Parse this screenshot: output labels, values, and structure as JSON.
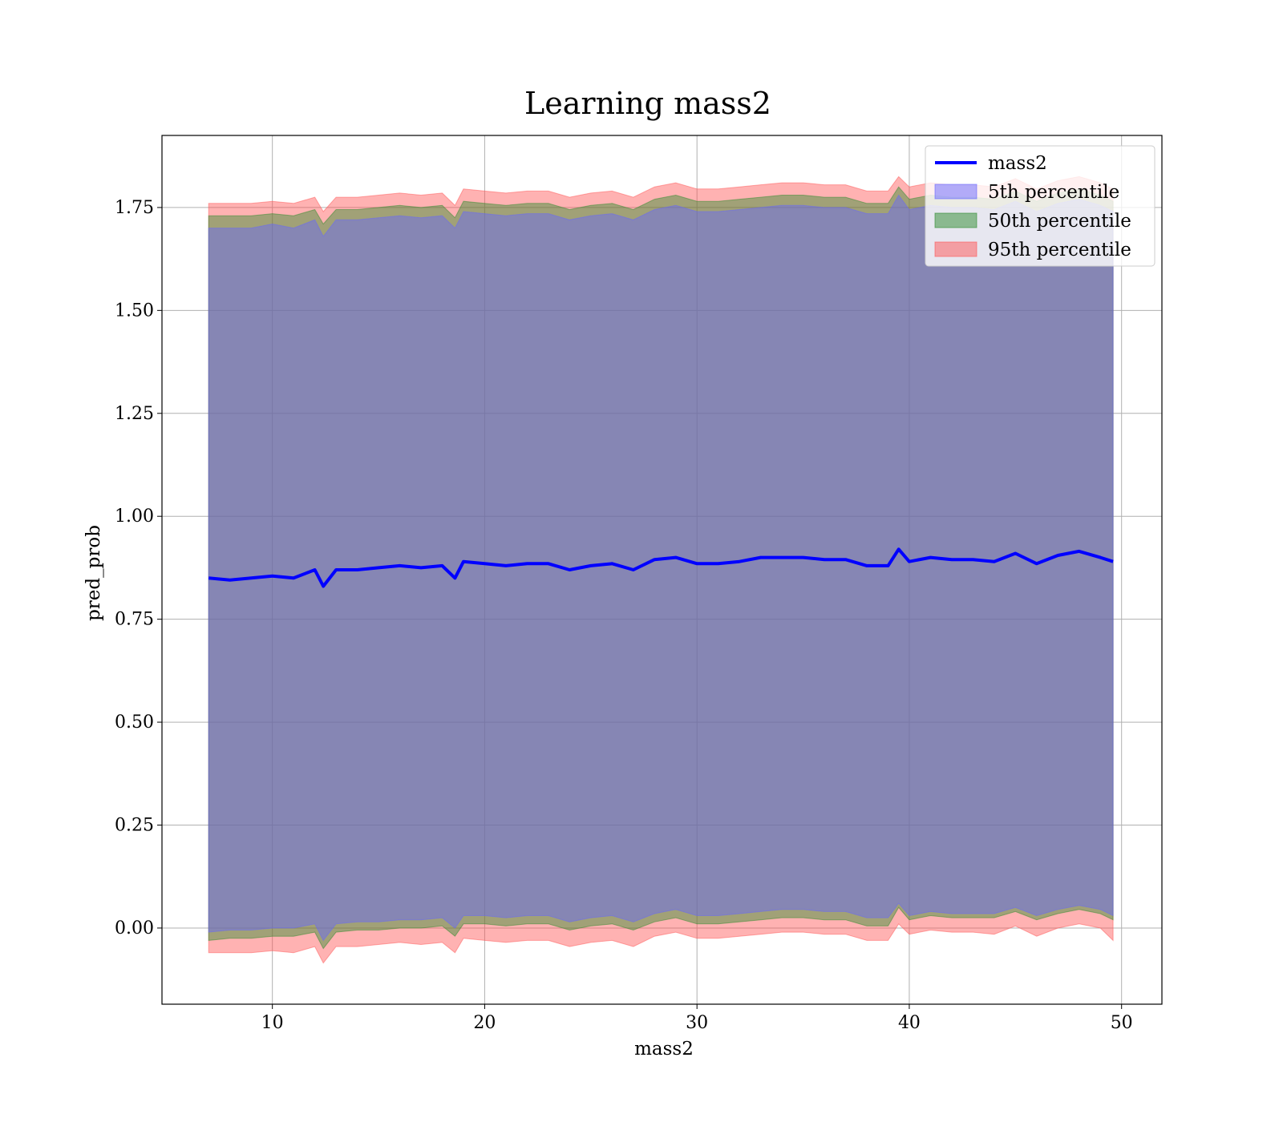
{
  "chart_data": {
    "type": "area",
    "title": "Learning mass2",
    "xlabel": "mass2",
    "ylabel": "pred_prob",
    "xlim": [
      4.8,
      51.9
    ],
    "ylim": [
      -0.185,
      1.925
    ],
    "x_ticks": [
      "10",
      "20",
      "30",
      "40",
      "50"
    ],
    "x_tick_values": [
      10,
      20,
      30,
      40,
      50
    ],
    "y_ticks": [
      "0.00",
      "0.25",
      "0.50",
      "0.75",
      "1.00",
      "1.25",
      "1.50",
      "1.75"
    ],
    "y_tick_values": [
      0,
      0.25,
      0.5,
      0.75,
      1.0,
      1.25,
      1.5,
      1.75
    ],
    "grid": true,
    "legend_position": "top-right",
    "x": [
      7.0,
      8.0,
      9.0,
      10.0,
      11.0,
      12.0,
      12.4,
      13.0,
      14.0,
      15.0,
      16.0,
      17.0,
      18.0,
      18.6,
      19.0,
      20.0,
      21.0,
      22.0,
      23.0,
      24.0,
      25.0,
      26.0,
      27.0,
      28.0,
      29.0,
      30.0,
      31.0,
      32.0,
      33.0,
      34.0,
      35.0,
      36.0,
      37.0,
      38.0,
      39.0,
      39.5,
      40.0,
      41.0,
      42.0,
      43.0,
      44.0,
      45.0,
      46.0,
      47.0,
      48.0,
      49.0,
      49.6
    ],
    "series": [
      {
        "name": "mass2",
        "kind": "line",
        "color": "#0000ff",
        "values": [
          0.85,
          0.845,
          0.85,
          0.855,
          0.85,
          0.87,
          0.83,
          0.87,
          0.87,
          0.875,
          0.88,
          0.875,
          0.88,
          0.85,
          0.89,
          0.885,
          0.88,
          0.885,
          0.885,
          0.87,
          0.88,
          0.885,
          0.87,
          0.895,
          0.9,
          0.885,
          0.885,
          0.89,
          0.9,
          0.9,
          0.9,
          0.895,
          0.895,
          0.88,
          0.88,
          0.92,
          0.89,
          0.9,
          0.895,
          0.895,
          0.89,
          0.91,
          0.885,
          0.905,
          0.915,
          0.9,
          0.89
        ]
      },
      {
        "name": "5th percentile",
        "kind": "band",
        "color": "#6666ff",
        "lower": [
          -0.01,
          -0.005,
          -0.005,
          0.0,
          0.0,
          0.01,
          -0.03,
          0.01,
          0.015,
          0.015,
          0.02,
          0.02,
          0.025,
          0.0,
          0.03,
          0.03,
          0.025,
          0.03,
          0.03,
          0.015,
          0.025,
          0.03,
          0.015,
          0.035,
          0.045,
          0.03,
          0.03,
          0.035,
          0.04,
          0.045,
          0.045,
          0.04,
          0.04,
          0.025,
          0.025,
          0.06,
          0.03,
          0.04,
          0.035,
          0.035,
          0.035,
          0.05,
          0.03,
          0.045,
          0.055,
          0.045,
          0.03
        ],
        "upper": [
          1.7,
          1.7,
          1.7,
          1.71,
          1.7,
          1.72,
          1.68,
          1.72,
          1.72,
          1.725,
          1.73,
          1.725,
          1.73,
          1.7,
          1.74,
          1.735,
          1.73,
          1.735,
          1.735,
          1.72,
          1.73,
          1.735,
          1.72,
          1.745,
          1.755,
          1.74,
          1.74,
          1.745,
          1.75,
          1.755,
          1.755,
          1.75,
          1.75,
          1.735,
          1.735,
          1.78,
          1.745,
          1.755,
          1.75,
          1.75,
          1.745,
          1.765,
          1.74,
          1.76,
          1.77,
          1.755,
          1.74
        ]
      },
      {
        "name": "50th percentile",
        "kind": "band",
        "color": "#2e8b2e",
        "lower": [
          -0.03,
          -0.025,
          -0.025,
          -0.02,
          -0.02,
          -0.01,
          -0.05,
          -0.01,
          -0.005,
          -0.005,
          0.0,
          0.0,
          0.005,
          -0.02,
          0.01,
          0.01,
          0.005,
          0.01,
          0.01,
          -0.005,
          0.005,
          0.01,
          -0.005,
          0.015,
          0.025,
          0.01,
          0.01,
          0.015,
          0.02,
          0.025,
          0.025,
          0.02,
          0.02,
          0.005,
          0.005,
          0.05,
          0.02,
          0.03,
          0.025,
          0.025,
          0.025,
          0.04,
          0.02,
          0.035,
          0.045,
          0.035,
          0.02
        ],
        "upper": [
          1.73,
          1.73,
          1.73,
          1.735,
          1.73,
          1.745,
          1.71,
          1.745,
          1.745,
          1.75,
          1.755,
          1.75,
          1.755,
          1.725,
          1.765,
          1.76,
          1.755,
          1.76,
          1.76,
          1.745,
          1.755,
          1.76,
          1.745,
          1.77,
          1.78,
          1.765,
          1.765,
          1.77,
          1.775,
          1.78,
          1.78,
          1.775,
          1.775,
          1.76,
          1.76,
          1.8,
          1.77,
          1.78,
          1.775,
          1.775,
          1.77,
          1.79,
          1.765,
          1.785,
          1.795,
          1.78,
          1.765
        ]
      },
      {
        "name": "95th percentile",
        "kind": "band",
        "color": "#ff5555",
        "lower": [
          -0.06,
          -0.06,
          -0.06,
          -0.055,
          -0.06,
          -0.045,
          -0.085,
          -0.045,
          -0.045,
          -0.04,
          -0.035,
          -0.04,
          -0.035,
          -0.06,
          -0.025,
          -0.03,
          -0.035,
          -0.03,
          -0.03,
          -0.045,
          -0.035,
          -0.03,
          -0.045,
          -0.02,
          -0.01,
          -0.025,
          -0.025,
          -0.02,
          -0.015,
          -0.01,
          -0.01,
          -0.015,
          -0.015,
          -0.03,
          -0.03,
          0.01,
          -0.015,
          -0.005,
          -0.01,
          -0.01,
          -0.015,
          0.005,
          -0.02,
          0.0,
          0.01,
          0.0,
          -0.03
        ],
        "upper": [
          1.76,
          1.76,
          1.76,
          1.765,
          1.76,
          1.775,
          1.74,
          1.775,
          1.775,
          1.78,
          1.785,
          1.78,
          1.785,
          1.755,
          1.795,
          1.79,
          1.785,
          1.79,
          1.79,
          1.775,
          1.785,
          1.79,
          1.775,
          1.8,
          1.81,
          1.795,
          1.795,
          1.8,
          1.805,
          1.81,
          1.81,
          1.805,
          1.805,
          1.79,
          1.79,
          1.825,
          1.8,
          1.81,
          1.805,
          1.805,
          1.8,
          1.82,
          1.795,
          1.815,
          1.825,
          1.81,
          1.795
        ]
      }
    ]
  }
}
